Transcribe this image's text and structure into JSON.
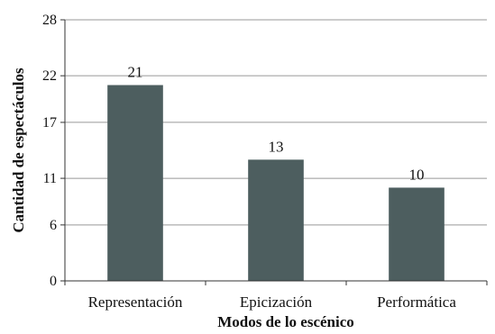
{
  "chart_data": {
    "type": "bar",
    "categories": [
      "Representación",
      "Epicización",
      "Performática"
    ],
    "values": [
      21,
      13,
      10
    ],
    "title": "",
    "xlabel": "Modos de lo escénico",
    "ylabel": "Cantidad de espectáculos",
    "ylim": [
      0,
      28
    ],
    "yticks": [
      0,
      6,
      11,
      17,
      22,
      28
    ],
    "grid": true,
    "legend": "none",
    "bar_color": "#4d5e5f",
    "grid_color": "#999999"
  }
}
